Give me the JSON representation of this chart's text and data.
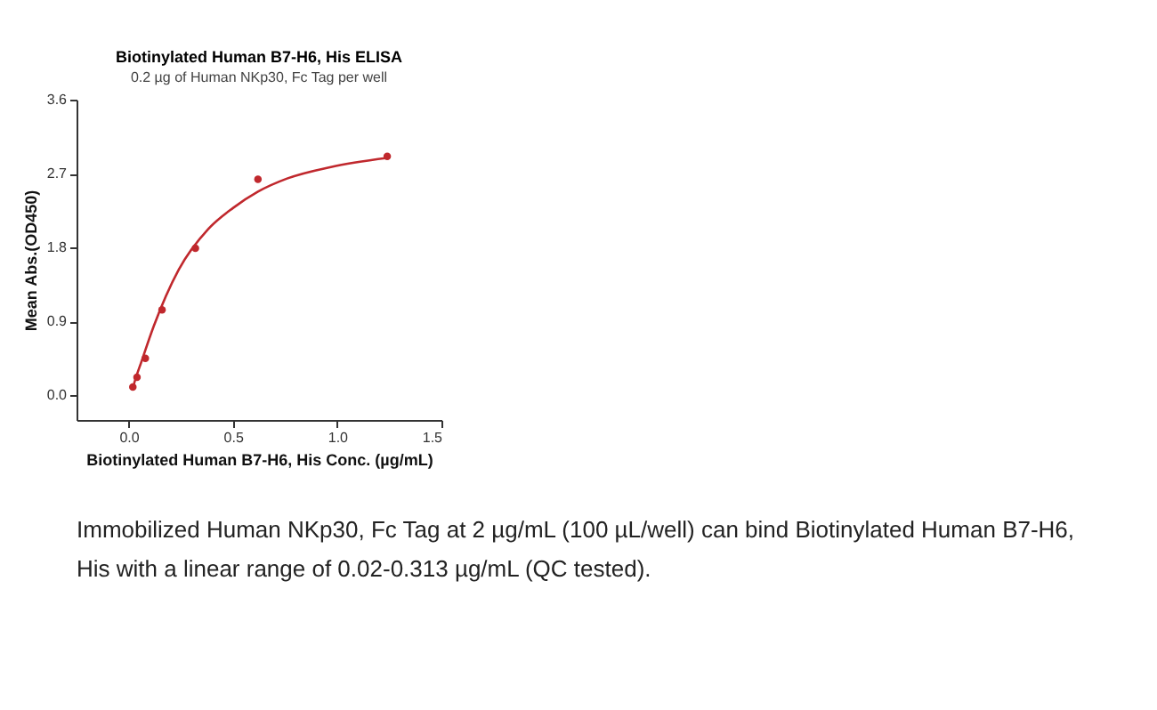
{
  "chart_data": {
    "type": "scatter",
    "title": "Biotinylated Human B7-H6, His ELISA",
    "subtitle": "0.2 µg of Human NKp30, Fc Tag per well",
    "xlabel": "Biotinylated Human B7-H6, His Conc. (µg/mL)",
    "ylabel": "Mean Abs.(OD450)",
    "series": [
      {
        "marker": "circle",
        "color": "#c0282d",
        "x": [
          0.02,
          0.04,
          0.08,
          0.16,
          0.32,
          0.62,
          1.24
        ],
        "values": [
          0.1,
          0.22,
          0.45,
          1.04,
          1.79,
          2.63,
          2.91
        ]
      },
      {
        "type": "line",
        "color": "#c0282d",
        "x": [
          0.02,
          0.028,
          0.06,
          0.12,
          0.24,
          0.38,
          0.5,
          0.62,
          0.76,
          0.97,
          1.24
        ],
        "values": [
          0.08,
          0.16,
          0.4,
          0.84,
          1.53,
          2.02,
          2.28,
          2.48,
          2.64,
          2.78,
          2.89
        ]
      }
    ],
    "xlim": [
      -0.25,
      1.5
    ],
    "xticks": [
      {
        "value": 0,
        "label": "0.0"
      },
      0.5,
      {
        "value": 1,
        "label": "1.0"
      },
      1.5
    ],
    "ylim": [
      -0.3,
      3.6
    ],
    "yticks": [
      {
        "value": 0,
        "label": "0.0"
      },
      0.9,
      1.8,
      2.7,
      3.6
    ],
    "grid": false,
    "annotations": [
      "Immobilized Human NKp30, Fc Tag at 2 µg/mL (100 µL/well) can bind Biotinylated Human B7-H6, His with a linear range of 0.02-0.313 µg/mL (QC tested)."
    ]
  }
}
